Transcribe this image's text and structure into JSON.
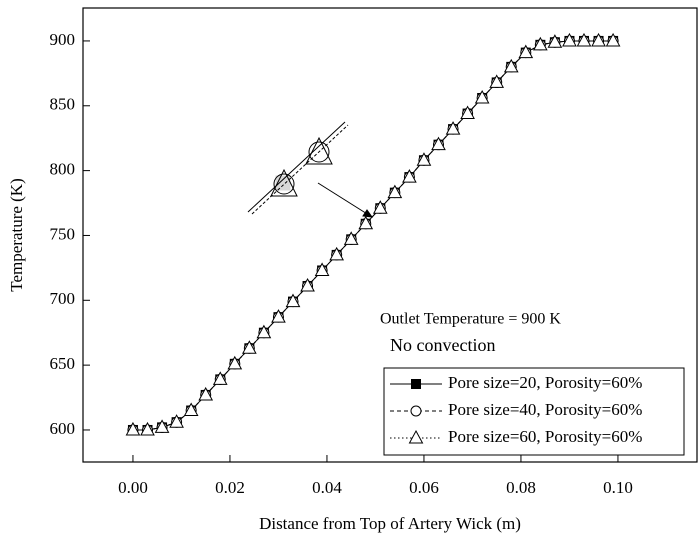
{
  "chart_data": {
    "type": "line",
    "x_label": "Distance from Top of Artery Wick (m)",
    "y_label": "Temperature (K)",
    "annotations": [
      "Outlet Temperature = 900 K",
      "No convection"
    ],
    "x": [
      0,
      0.003,
      0.006,
      0.009,
      0.012,
      0.015,
      0.018,
      0.021,
      0.024,
      0.027,
      0.03,
      0.033,
      0.036,
      0.039,
      0.042,
      0.045,
      0.048,
      0.051,
      0.054,
      0.057,
      0.06,
      0.063,
      0.066,
      0.069,
      0.072,
      0.075,
      0.078,
      0.081,
      0.084,
      0.087,
      0.09,
      0.093,
      0.096,
      0.099
    ],
    "series": [
      {
        "name": "Pore size=20, Porosity=60%",
        "color": "#000000",
        "marker": "square",
        "values": [
          600,
          600,
          602,
          606,
          615,
          627,
          639,
          651,
          663,
          675,
          687,
          699,
          711,
          723,
          735,
          747,
          759,
          771,
          783,
          795,
          808,
          820,
          832,
          844,
          856,
          868,
          880,
          891,
          897,
          899,
          900,
          900,
          900,
          900
        ]
      },
      {
        "name": "Pore size=40, Porosity=60%",
        "color": "#000000",
        "marker": "circle",
        "values": [
          600,
          600,
          602,
          606,
          615,
          627,
          639,
          651,
          663,
          675,
          687,
          699,
          711,
          723,
          735,
          747,
          759,
          771,
          783,
          795,
          808,
          820,
          832,
          844,
          856,
          868,
          880,
          891,
          897,
          899,
          900,
          900,
          900,
          900
        ]
      },
      {
        "name": "Pore size=60, Porosity=60%",
        "color": "#000000",
        "marker": "triangle",
        "values": [
          600,
          600,
          602,
          606,
          615,
          627,
          639,
          651,
          663,
          675,
          687,
          699,
          711,
          723,
          735,
          747,
          759,
          771,
          783,
          795,
          808,
          820,
          832,
          844,
          856,
          868,
          880,
          891,
          897,
          899,
          900,
          900,
          900,
          900
        ]
      }
    ],
    "xlim": [
      -0.0103,
      0.1163
    ],
    "ylim": [
      575.3,
      925.4
    ],
    "xticks": [
      {
        "value": 0,
        "label": "0.00"
      },
      0.02,
      0.04,
      0.06,
      0.08,
      {
        "value": 0.1,
        "label": "0.10"
      }
    ],
    "yticks": [
      600,
      650,
      700,
      750,
      800,
      850,
      900
    ],
    "grid": false,
    "legend": "lower right"
  }
}
